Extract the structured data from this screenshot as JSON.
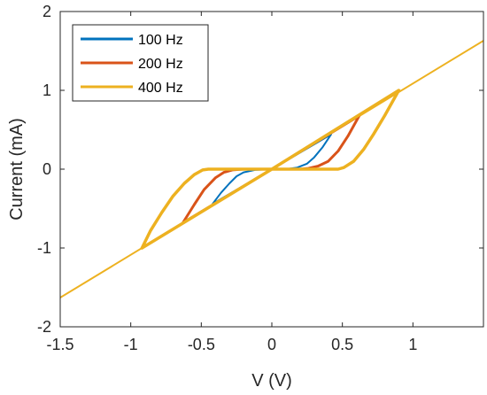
{
  "chart_data": {
    "type": "line",
    "title": "",
    "xlabel": "V (V)",
    "ylabel": "Current (mA)",
    "xlim": [
      -1.5,
      1.5
    ],
    "ylim": [
      -2,
      2
    ],
    "grid": false,
    "legend_placement": "top-left",
    "x_ticks": [
      -1.5,
      -1,
      -0.5,
      0,
      0.5,
      1
    ],
    "x_tick_labels": [
      "-1.5",
      "-1",
      "-0.5",
      "0",
      "0.5",
      "1"
    ],
    "y_ticks": [
      -2,
      -1,
      0,
      1,
      2
    ],
    "y_tick_labels": [
      "-2",
      "-1",
      "0",
      "1",
      "2"
    ],
    "reference_line": {
      "color": "#EDB120",
      "points": [
        [
          -1.5,
          -1.63
        ],
        [
          1.5,
          1.63
        ]
      ]
    },
    "series": [
      {
        "name": "100 Hz",
        "color": "#0072BD",
        "points": [
          [
            -0.42,
            -0.44
          ],
          [
            -0.36,
            -0.3
          ],
          [
            -0.3,
            -0.18
          ],
          [
            -0.25,
            -0.09
          ],
          [
            -0.2,
            -0.04
          ],
          [
            -0.12,
            -0.01
          ],
          [
            0.0,
            0.0
          ],
          [
            0.1,
            0.0
          ],
          [
            0.18,
            0.02
          ],
          [
            0.25,
            0.07
          ],
          [
            0.3,
            0.15
          ],
          [
            0.36,
            0.28
          ],
          [
            0.42,
            0.44
          ],
          [
            0.0,
            0.0
          ],
          [
            -0.42,
            -0.44
          ]
        ]
      },
      {
        "name": "200 Hz",
        "color": "#D95319",
        "points": [
          [
            -0.63,
            -0.68
          ],
          [
            -0.55,
            -0.45
          ],
          [
            -0.48,
            -0.26
          ],
          [
            -0.4,
            -0.11
          ],
          [
            -0.34,
            -0.04
          ],
          [
            -0.28,
            -0.01
          ],
          [
            -0.2,
            0.0
          ],
          [
            0.2,
            0.0
          ],
          [
            0.26,
            0.01
          ],
          [
            0.33,
            0.04
          ],
          [
            0.4,
            0.1
          ],
          [
            0.47,
            0.23
          ],
          [
            0.54,
            0.42
          ],
          [
            0.62,
            0.68
          ],
          [
            0.0,
            0.0
          ],
          [
            -0.63,
            -0.68
          ]
        ]
      },
      {
        "name": "400 Hz",
        "color": "#EDB120",
        "points": [
          [
            -0.92,
            -1.0
          ],
          [
            -0.86,
            -0.78
          ],
          [
            -0.78,
            -0.55
          ],
          [
            -0.7,
            -0.34
          ],
          [
            -0.62,
            -0.18
          ],
          [
            -0.55,
            -0.07
          ],
          [
            -0.49,
            -0.01
          ],
          [
            -0.45,
            0.0
          ],
          [
            0.47,
            0.0
          ],
          [
            0.51,
            0.02
          ],
          [
            0.58,
            0.1
          ],
          [
            0.65,
            0.25
          ],
          [
            0.72,
            0.44
          ],
          [
            0.8,
            0.68
          ],
          [
            0.9,
            1.0
          ],
          [
            0.0,
            0.0
          ],
          [
            -0.92,
            -1.0
          ]
        ]
      }
    ]
  }
}
